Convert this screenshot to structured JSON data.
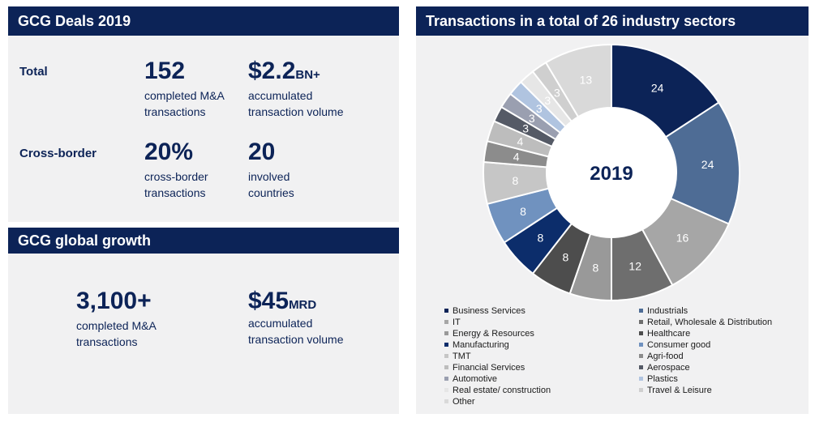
{
  "deals": {
    "title": "GCG Deals 2019",
    "total_label": "Total",
    "total_count": "152",
    "total_count_desc": [
      "completed M&A",
      "transactions"
    ],
    "total_volume": "$2.2",
    "total_volume_unit": "BN+",
    "total_volume_desc": [
      "accumulated",
      "transaction volume"
    ],
    "cross_label": "Cross-border",
    "cross_pct": "20%",
    "cross_pct_desc": [
      "cross-border",
      "transactions"
    ],
    "countries": "20",
    "countries_desc": [
      "involved",
      "countries"
    ]
  },
  "growth": {
    "title": "GCG global growth",
    "count": "3,100+",
    "count_desc": [
      "completed M&A",
      "transactions"
    ],
    "volume": "$45",
    "volume_unit": "MRD",
    "volume_desc": [
      "accumulated",
      "transaction volume"
    ]
  },
  "chart_data": {
    "type": "pie",
    "title": "Transactions in a total of 26 industry sectors",
    "center_label": "2019",
    "categories": [
      "Business Services",
      "Industrials",
      "IT",
      "Retail, Wholesale & Distribution",
      "Energy & Resources",
      "Healthcare",
      "Manufacturing",
      "Consumer good",
      "TMT",
      "Agri-food",
      "Financial Services",
      "Aerospace",
      "Automotive",
      "Plastics",
      "Real estate/ construction",
      "Travel & Leisure",
      "Other"
    ],
    "values": [
      24,
      24,
      16,
      12,
      8,
      8,
      8,
      8,
      8,
      4,
      4,
      3,
      3,
      3,
      3,
      3,
      13
    ],
    "colors": [
      "#0c2357",
      "#4e6c95",
      "#a6a6a6",
      "#6e6e6e",
      "#999999",
      "#4d4d4d",
      "#0c2d6b",
      "#7092bf",
      "#c6c6c6",
      "#8c8c8c",
      "#bdbdbd",
      "#555a66",
      "#9a9fb0",
      "#b0c4e0",
      "#e6e6e6",
      "#cfcfcf",
      "#d9d9d9"
    ],
    "label_colors": [
      "#ffffff",
      "#ffffff",
      "#ffffff",
      "#ffffff",
      "#ffffff",
      "#ffffff",
      "#ffffff",
      "#ffffff",
      "#ffffff",
      "#ffffff",
      "#ffffff",
      "#ffffff",
      "#ffffff",
      "#ffffff",
      "#ffffff",
      "#ffffff",
      "#ffffff"
    ],
    "legend_placement": "bottom",
    "inner_radius_ratio": 0.5
  }
}
